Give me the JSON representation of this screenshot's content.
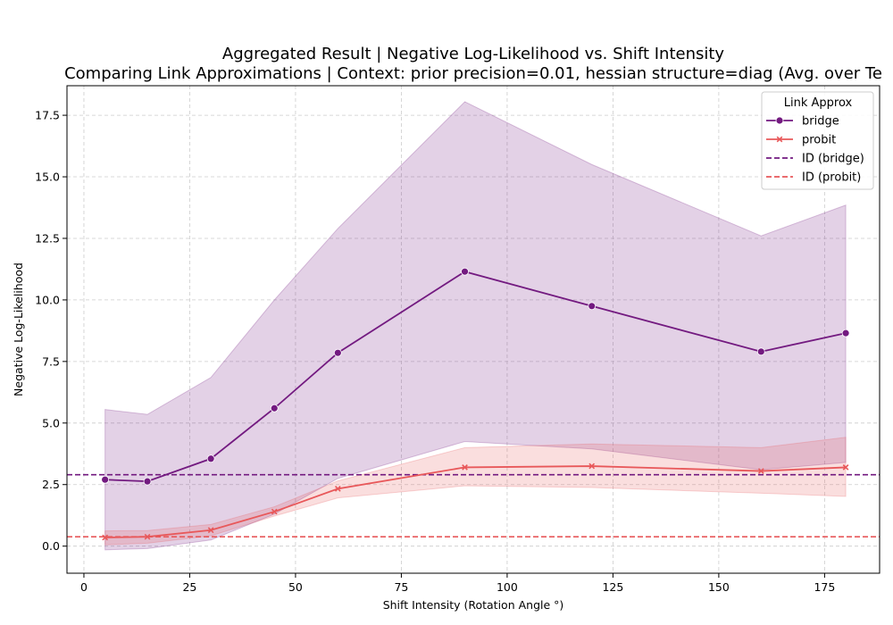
{
  "chart_data": {
    "type": "line",
    "title": "Aggregated Result | Negative Log-Likelihood vs. Shift Intensity",
    "subtitle": "Comparing Link Approximations | Context: prior precision=0.01, hessian structure=diag (Avg. over Te",
    "xlabel": "Shift Intensity (Rotation Angle °)",
    "ylabel": "Negative Log-Likelihood",
    "xlim": [
      -4,
      188
    ],
    "ylim": [
      -1.1,
      18.7
    ],
    "xticks": [
      0,
      25,
      50,
      75,
      100,
      125,
      150,
      175
    ],
    "yticks": [
      0.0,
      2.5,
      5.0,
      7.5,
      10.0,
      12.5,
      15.0,
      17.5
    ],
    "xtick_labels": [
      "0",
      "25",
      "50",
      "75",
      "100",
      "125",
      "150",
      "175"
    ],
    "ytick_labels": [
      "0.0",
      "2.5",
      "5.0",
      "7.5",
      "10.0",
      "12.5",
      "15.0",
      "17.5"
    ],
    "grid": true,
    "legend": {
      "title": "Link Approx",
      "placement": "top-right",
      "entries": [
        "bridge",
        "probit",
        "ID (bridge)",
        "ID (probit)"
      ]
    },
    "x": [
      5,
      15,
      30,
      45,
      60,
      90,
      120,
      160,
      180
    ],
    "series": [
      {
        "name": "bridge",
        "color": "#731a80",
        "marker": "circle",
        "values": [
          2.7,
          2.63,
          3.55,
          5.6,
          7.85,
          11.15,
          9.75,
          7.9,
          8.65
        ],
        "band_upper": [
          5.55,
          5.35,
          6.85,
          10.0,
          12.9,
          18.05,
          15.5,
          12.6,
          13.85
        ],
        "band_lower": [
          -0.15,
          -0.1,
          0.25,
          1.3,
          2.75,
          4.25,
          3.95,
          3.1,
          3.4
        ]
      },
      {
        "name": "probit",
        "color": "#e8585a",
        "marker": "x",
        "values": [
          0.35,
          0.38,
          0.65,
          1.4,
          2.33,
          3.2,
          3.25,
          3.05,
          3.2
        ],
        "band_upper": [
          0.62,
          0.63,
          0.88,
          1.6,
          2.65,
          4.0,
          4.15,
          4.0,
          4.42
        ],
        "band_lower": [
          0.05,
          0.12,
          0.42,
          1.22,
          1.96,
          2.45,
          2.38,
          2.15,
          2.02
        ]
      }
    ],
    "reference_lines": [
      {
        "name": "ID (bridge)",
        "y": 2.9,
        "color": "#731a80",
        "style": "dashed"
      },
      {
        "name": "ID (probit)",
        "y": 0.38,
        "color": "#e8585a",
        "style": "dashed"
      }
    ]
  }
}
